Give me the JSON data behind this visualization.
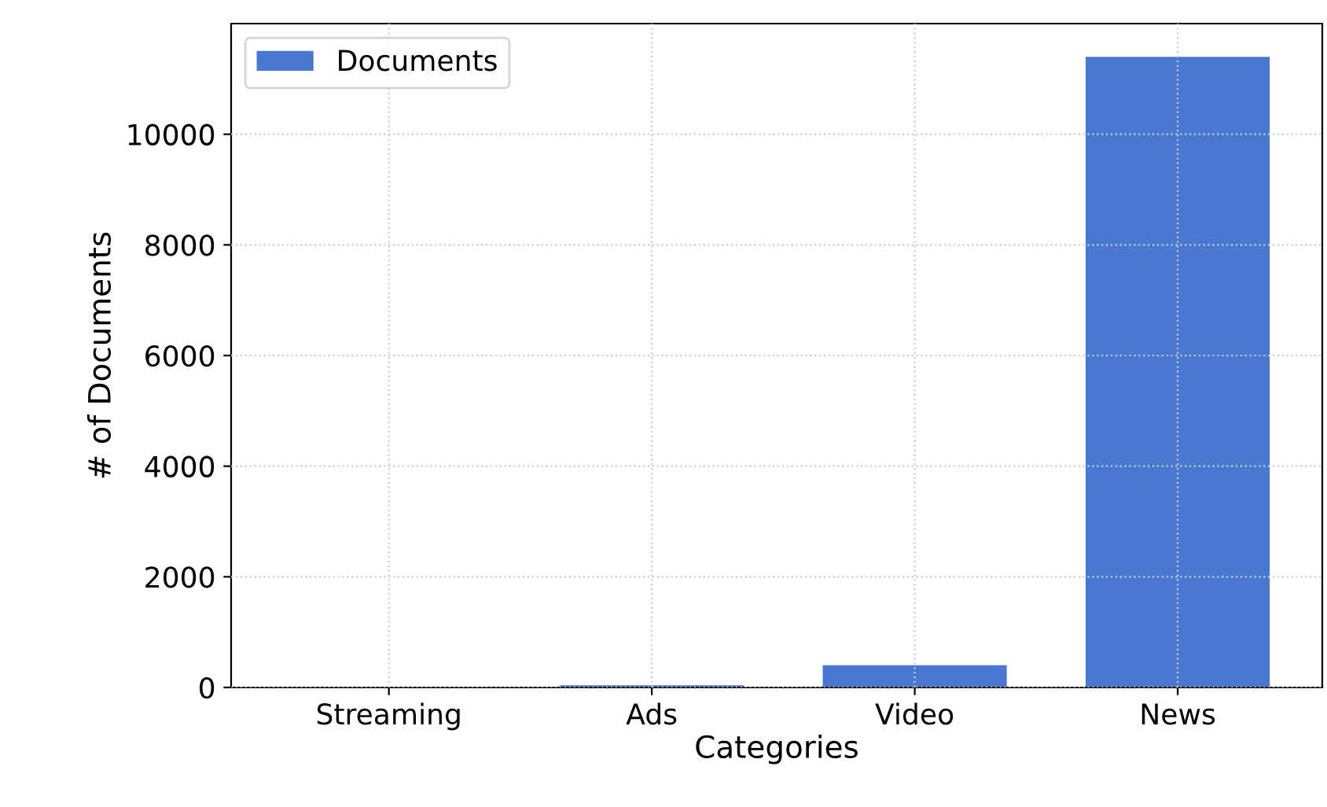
{
  "chart_data": {
    "type": "bar",
    "xlabel": "Categories",
    "ylabel": "# of Documents",
    "categories": [
      "Streaming",
      "Ads",
      "Video",
      "News"
    ],
    "series": [
      {
        "name": "Documents",
        "color": "#4878cf",
        "values": [
          0,
          40,
          400,
          11400
        ]
      }
    ],
    "ylim": [
      0,
      12000
    ],
    "yticks": [
      0,
      2000,
      4000,
      6000,
      8000,
      10000
    ],
    "grid": true,
    "legend": "top left"
  }
}
